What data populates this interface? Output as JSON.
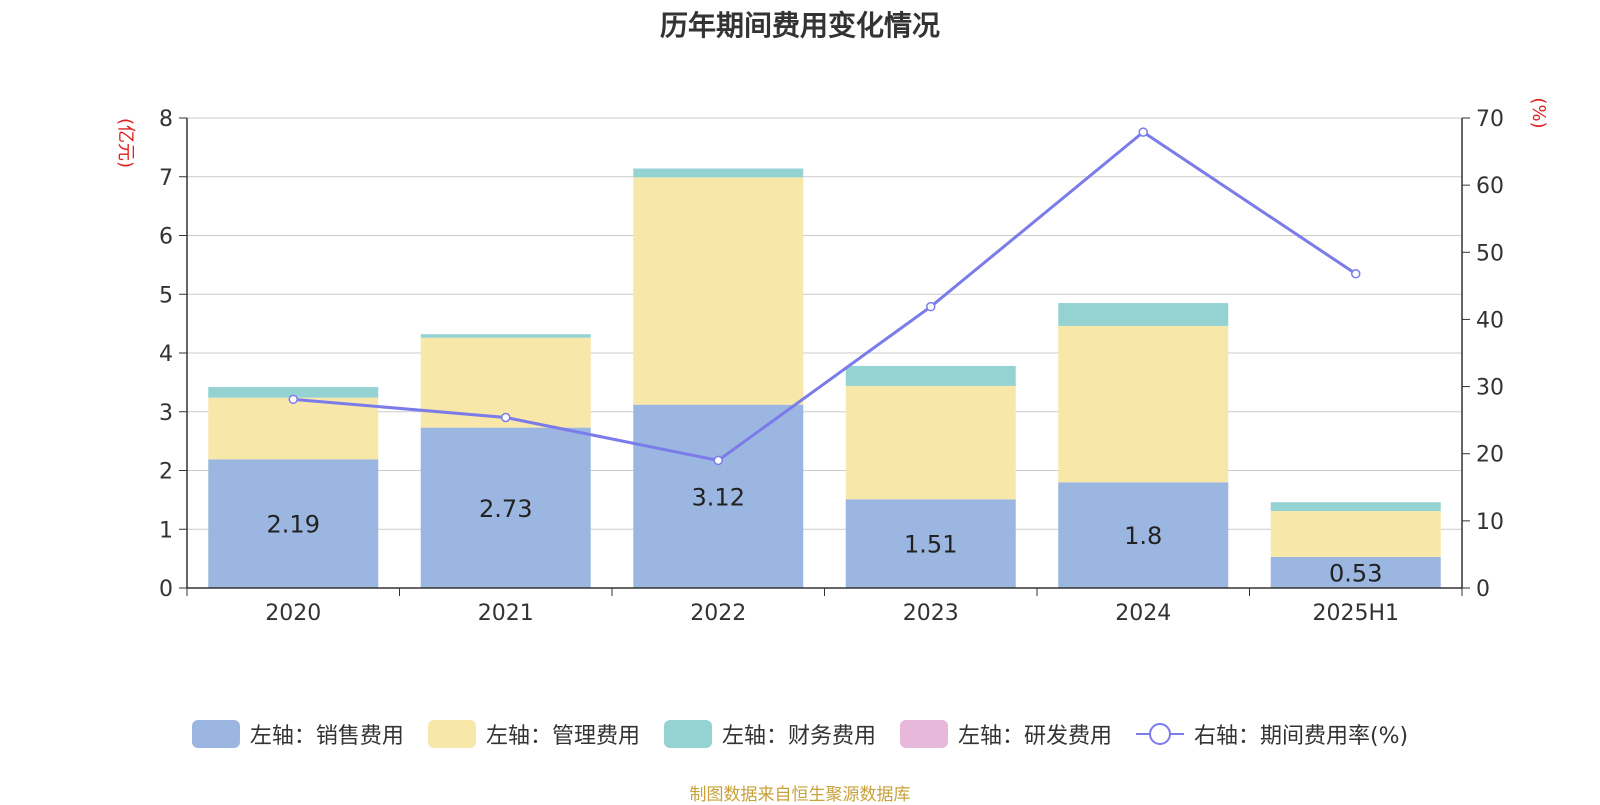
{
  "chart_data": {
    "type": "bar",
    "stacked": true,
    "title": "历年期间费用变化情况",
    "categories": [
      "2020",
      "2021",
      "2022",
      "2023",
      "2024",
      "2025H1"
    ],
    "left_axis": {
      "label": "(亿元)",
      "ylim": [
        0,
        8
      ],
      "ticks": [
        0,
        1,
        2,
        3,
        4,
        5,
        6,
        7,
        8
      ]
    },
    "right_axis": {
      "label": "(%)",
      "ylim": [
        0,
        70
      ],
      "ticks": [
        0,
        10,
        20,
        30,
        40,
        50,
        60,
        70
      ]
    },
    "series": [
      {
        "name": "左轴：销售费用",
        "axis": "left",
        "color": "#9bb6e0",
        "values": [
          2.19,
          2.73,
          3.12,
          1.51,
          1.8,
          0.53
        ],
        "show_labels": true
      },
      {
        "name": "左轴：管理费用",
        "axis": "left",
        "color": "#f7e7a9",
        "values": [
          1.05,
          1.53,
          3.87,
          1.93,
          2.66,
          0.78
        ]
      },
      {
        "name": "左轴：财务费用",
        "axis": "left",
        "color": "#95d3d3",
        "values": [
          0.18,
          0.06,
          0.15,
          0.34,
          0.39,
          0.15
        ]
      },
      {
        "name": "左轴：研发费用",
        "axis": "left",
        "color": "#e8b8da",
        "values": [
          0,
          0,
          0,
          0,
          0,
          0
        ]
      }
    ],
    "line_series": {
      "name": "右轴：期间费用率(%)",
      "axis": "right",
      "color": "#7b7bea",
      "values": [
        28.1,
        25.4,
        19.0,
        41.9,
        67.9,
        46.8
      ]
    },
    "source": "制图数据来自恒生聚源数据库"
  }
}
